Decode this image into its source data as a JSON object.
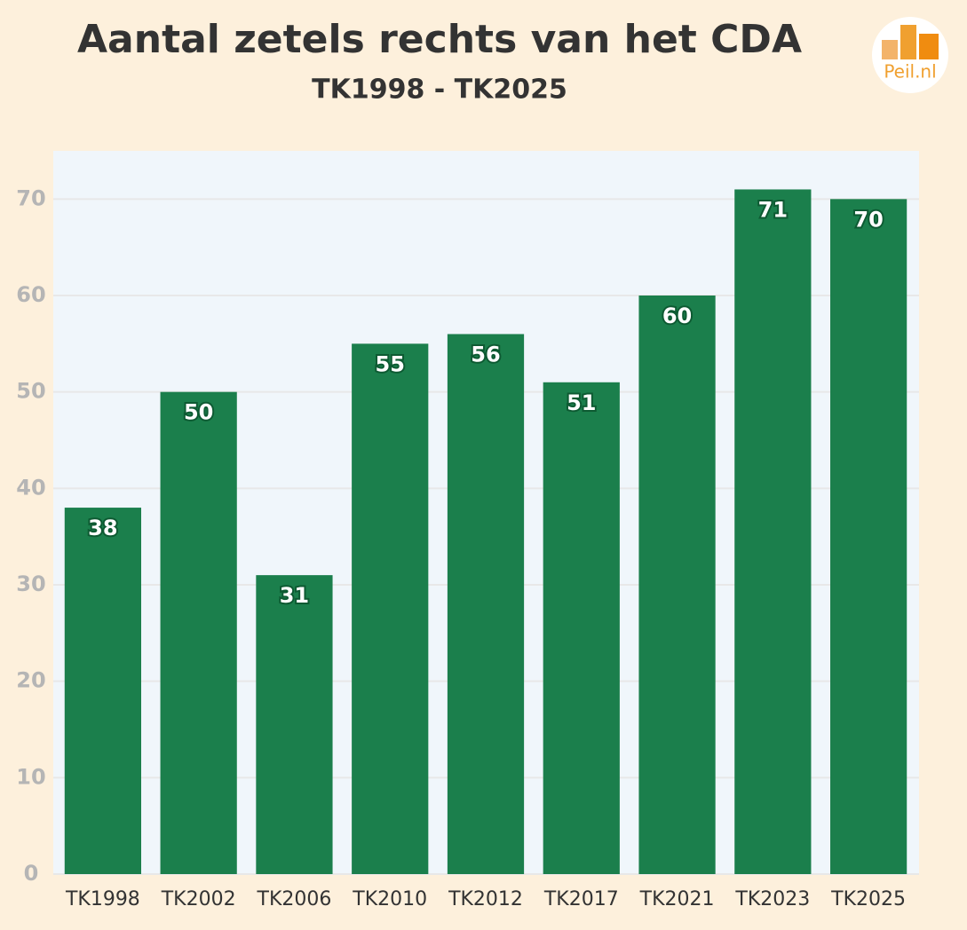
{
  "chart_data": {
    "type": "bar",
    "title": "Aantal zetels rechts van het CDA",
    "subtitle": "TK1998 - TK2025",
    "logo": "Peil.nl",
    "categories": [
      "TK1998",
      "TK2002",
      "TK2006",
      "TK2010",
      "TK2012",
      "TK2017",
      "TK2021",
      "TK2023",
      "TK2025"
    ],
    "values": [
      38,
      50,
      31,
      55,
      56,
      51,
      60,
      71,
      70
    ],
    "color": "#1b7f4c",
    "ylim": [
      0,
      75
    ],
    "yticks": [
      0,
      10,
      20,
      30,
      40,
      50,
      60,
      70
    ],
    "grid": true
  }
}
